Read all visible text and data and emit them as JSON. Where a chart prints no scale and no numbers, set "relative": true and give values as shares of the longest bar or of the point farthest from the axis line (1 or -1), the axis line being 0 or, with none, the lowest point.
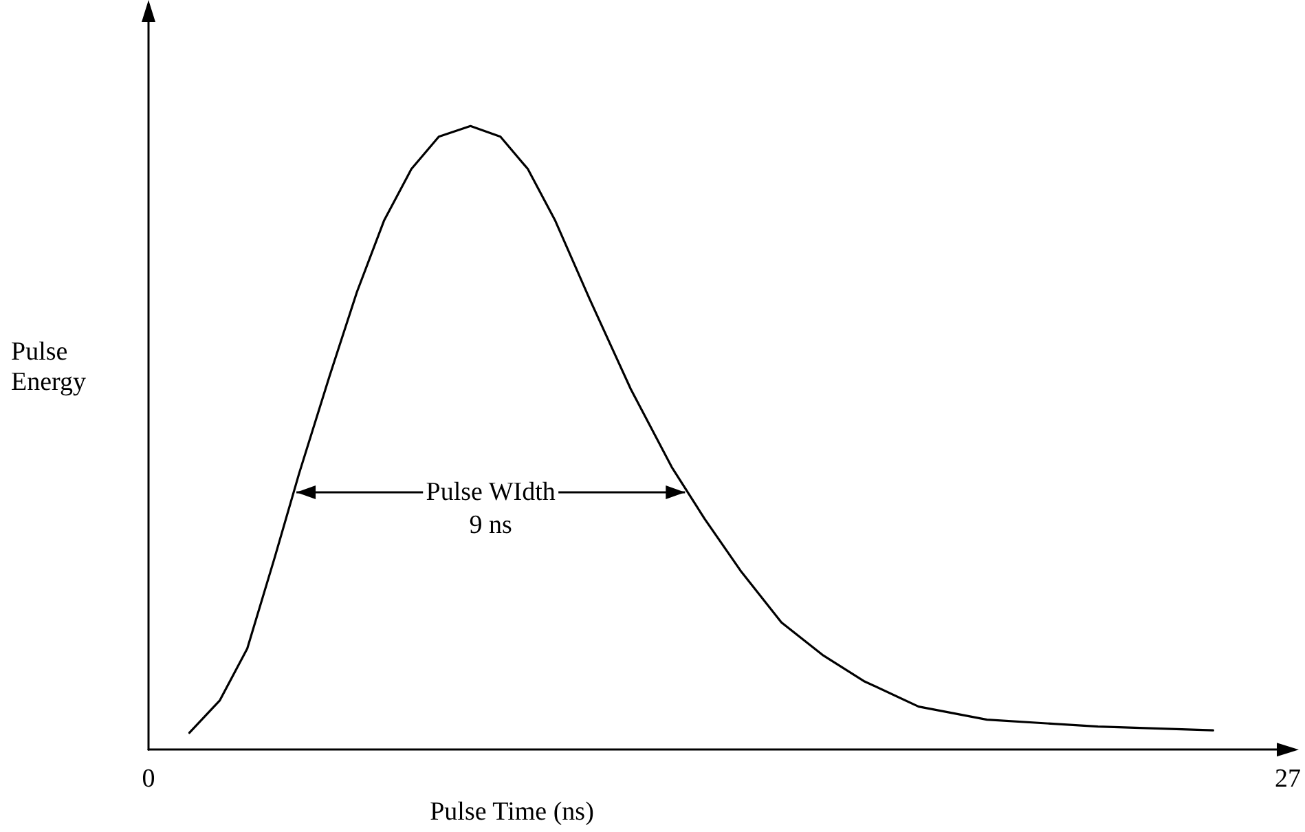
{
  "chart_data": {
    "type": "line",
    "xlabel": "Pulse Time (ns)",
    "ylabel": "Pulse Energy",
    "relative": true,
    "xlim": [
      0,
      27
    ],
    "xticks": [
      0,
      27
    ],
    "grid": false,
    "marker": "none",
    "line_style": "solid",
    "series": [
      {
        "color": "#000000",
        "x": [
          0.97,
          1.69,
          2.34,
          2.99,
          3.57,
          4.29,
          4.94,
          5.58,
          6.23,
          6.88,
          7.63,
          8.34,
          8.99,
          9.64,
          10.45,
          11.43,
          12.4,
          13.18,
          14.03,
          15.0,
          15.97,
          16.95,
          18.25,
          19.87,
          22.5,
          25.23
        ],
        "values": [
          0.027,
          0.079,
          0.162,
          0.308,
          0.443,
          0.599,
          0.734,
          0.848,
          0.931,
          0.983,
          1,
          0.983,
          0.931,
          0.848,
          0.723,
          0.578,
          0.453,
          0.37,
          0.287,
          0.204,
          0.152,
          0.11,
          0.069,
          0.048,
          0.037,
          0.031
        ]
      }
    ],
    "annotations": [
      "Pulse WIdth",
      "9 ns"
    ]
  }
}
